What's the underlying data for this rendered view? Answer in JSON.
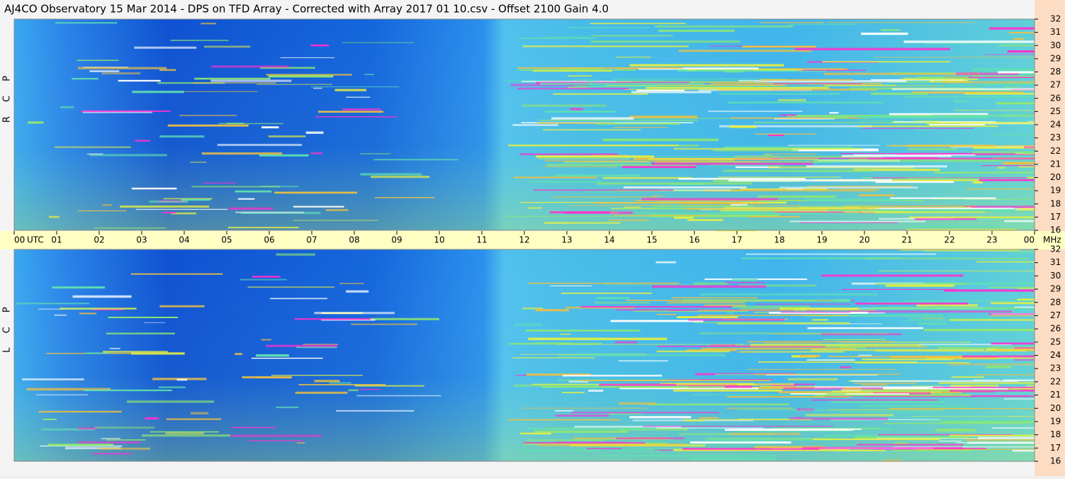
{
  "chart_data": {
    "type": "spectrogram",
    "title": "AJ4CO Observatory  15 Mar 2014  -  DPS on TFD Array  -  Corrected with Array 2017 01 10.csv  -  Offset 2100  Gain 4.0",
    "panels": [
      "R C P",
      "L C P"
    ],
    "x_unit": "UTC",
    "y_unit": "MHz",
    "xlim": [
      0,
      24
    ],
    "xticks": [
      {
        "value": 0,
        "label": "00"
      },
      {
        "value": 1,
        "label": "01"
      },
      {
        "value": 2,
        "label": "02"
      },
      {
        "value": 3,
        "label": "03"
      },
      {
        "value": 4,
        "label": "04"
      },
      {
        "value": 5,
        "label": "05"
      },
      {
        "value": 6,
        "label": "06"
      },
      {
        "value": 7,
        "label": "07"
      },
      {
        "value": 8,
        "label": "08"
      },
      {
        "value": 9,
        "label": "09"
      },
      10,
      11,
      12,
      13,
      14,
      15,
      16,
      17,
      18,
      19,
      20,
      21,
      22,
      23,
      {
        "value": 24,
        "label": "00"
      }
    ],
    "ylim": [
      16,
      32
    ],
    "yticks": [
      16,
      17,
      18,
      19,
      20,
      21,
      22,
      23,
      24,
      25,
      26,
      27,
      28,
      29,
      30,
      31,
      32
    ]
  }
}
